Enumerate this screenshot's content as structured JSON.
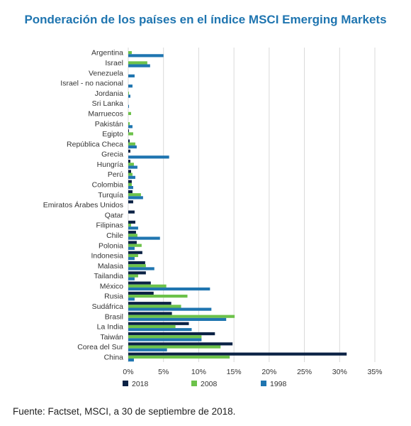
{
  "chart_data": {
    "type": "bar",
    "orientation": "horizontal",
    "title": "Ponderación de los países en el índice MSCI Emerging Markets",
    "xlim": [
      0,
      35
    ],
    "x_ticks": [
      "0%",
      "5%",
      "10%",
      "15%",
      "20%",
      "25%",
      "30%",
      "35%"
    ],
    "x_tick_values": [
      0,
      5,
      10,
      15,
      20,
      25,
      30,
      35
    ],
    "grid": "vertical",
    "legend_position": "bottom",
    "categories": [
      "Argentina",
      "Israel",
      "Venezuela",
      "Israel - no nacional",
      "Jordania",
      "Sri Lanka",
      "Marruecos",
      "Pakistán",
      "Egipto",
      "República Checa",
      "Grecia",
      "Hungría",
      "Perú",
      "Colombia",
      "Turquía",
      "Emiratos Árabes Unidos",
      "Qatar",
      "Filipinas",
      "Chile",
      "Polonia",
      "Indonesia",
      "Malasia",
      "Tailandia",
      "México",
      "Rusia",
      "Sudáfrica",
      "Brasil",
      "La India",
      "Taiwán",
      "Corea del Sur",
      "China"
    ],
    "series": [
      {
        "name": "2018",
        "color": "#0b2245",
        "values": [
          0.0,
          0.0,
          0.0,
          0.0,
          0.0,
          0.0,
          0.0,
          0.0,
          0.1,
          0.2,
          0.3,
          0.3,
          0.4,
          0.5,
          0.6,
          0.7,
          0.9,
          1.0,
          1.1,
          1.2,
          2.0,
          2.4,
          2.5,
          3.2,
          3.6,
          6.1,
          6.2,
          8.6,
          12.3,
          14.8,
          31.0
        ]
      },
      {
        "name": "2008",
        "color": "#6cc24a",
        "values": [
          0.5,
          2.7,
          0.0,
          0.0,
          0.1,
          0.0,
          0.4,
          0.2,
          0.7,
          1.0,
          0.0,
          0.8,
          0.6,
          0.5,
          1.8,
          0.0,
          0.0,
          0.4,
          1.3,
          1.9,
          1.4,
          2.5,
          1.4,
          5.4,
          8.4,
          7.5,
          15.1,
          6.7,
          10.4,
          13.1,
          14.4
        ]
      },
      {
        "name": "1998",
        "color": "#1f75b0",
        "values": [
          5.0,
          3.1,
          0.9,
          0.6,
          0.3,
          0.1,
          0.0,
          0.6,
          0.0,
          1.2,
          5.8,
          1.3,
          1.0,
          0.7,
          2.1,
          0.0,
          0.0,
          1.4,
          4.5,
          0.9,
          0.9,
          3.7,
          0.9,
          11.6,
          0.9,
          11.8,
          13.9,
          9.0,
          10.4,
          5.5,
          0.8
        ]
      }
    ]
  },
  "source_text": "Fuente: Factset, MSCI, a 30 de septiembre de 2018."
}
